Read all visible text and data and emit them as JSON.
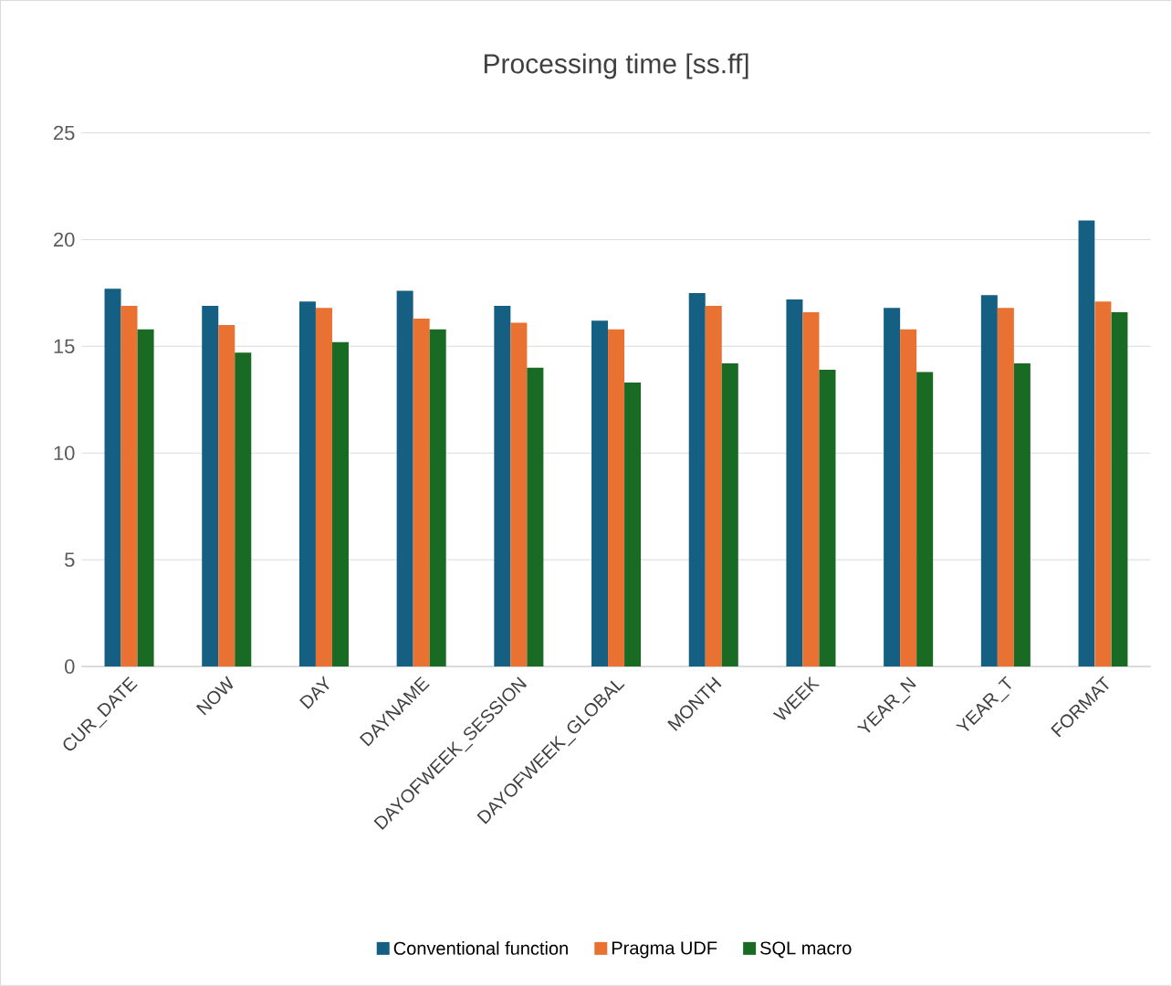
{
  "chart_data": {
    "type": "bar",
    "title": "Processing time [ss.ff]",
    "categories": [
      "CUR_DATE",
      "NOW",
      "DAY",
      "DAYNAME",
      "DAYOFWEEK_SESSION",
      "DAYOFWEEK_GLOBAL",
      "MONTH",
      "WEEK",
      "YEAR_N",
      "YEAR_T",
      "FORMAT"
    ],
    "series": [
      {
        "name": "Conventional function",
        "color": "#156082",
        "values": [
          17.7,
          16.9,
          17.1,
          17.6,
          16.9,
          16.2,
          17.5,
          17.2,
          16.8,
          17.4,
          20.9
        ]
      },
      {
        "name": "Pragma UDF",
        "color": "#e97132",
        "values": [
          16.9,
          16.0,
          16.8,
          16.3,
          16.1,
          15.8,
          16.9,
          16.6,
          15.8,
          16.8,
          17.1
        ]
      },
      {
        "name": "SQL macro",
        "color": "#196b24",
        "values": [
          15.8,
          14.7,
          15.2,
          15.8,
          14.0,
          13.3,
          14.2,
          13.9,
          13.8,
          14.2,
          16.6
        ]
      }
    ],
    "ylim": [
      0,
      25
    ],
    "yticks": [
      0,
      5,
      10,
      15,
      20,
      25
    ],
    "grid": "y",
    "legend": "bottom"
  }
}
